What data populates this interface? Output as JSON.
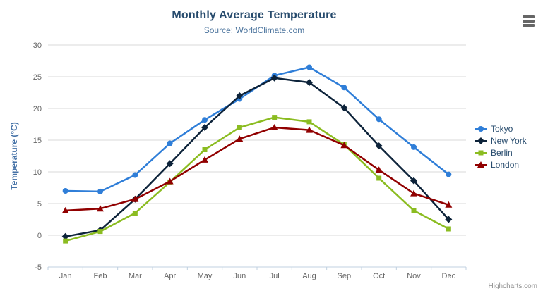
{
  "header": {
    "title": "Monthly Average Temperature",
    "subtitle": "Source: WorldClimate.com",
    "menu_icon": "hamburger-menu-icon"
  },
  "credit": {
    "label": "Highcharts.com"
  },
  "colors": {
    "title": "#274b6d",
    "subtitle": "#4d759e",
    "axis_label": "#666666",
    "axis_title": "#4572a7",
    "grid_line": "#d8d8d8",
    "axis_line": "#c0d0e0",
    "legend_text": "#274b6d",
    "menu_icon": "#666666",
    "credit_text": "#909090"
  },
  "chart_data": {
    "type": "line",
    "title": "Monthly Average Temperature",
    "subtitle": "Source: WorldClimate.com",
    "xlabel": "",
    "ylabel": "Temperature (°C)",
    "ylim": [
      -5,
      30
    ],
    "ytick_step": 5,
    "grid": true,
    "legend_position": "right",
    "categories": [
      "Jan",
      "Feb",
      "Mar",
      "Apr",
      "May",
      "Jun",
      "Jul",
      "Aug",
      "Sep",
      "Oct",
      "Nov",
      "Dec"
    ],
    "series": [
      {
        "name": "Tokyo",
        "color": "#2f7ed8",
        "marker": "circle",
        "values": [
          7.0,
          6.9,
          9.5,
          14.5,
          18.2,
          21.5,
          25.2,
          26.5,
          23.3,
          18.3,
          13.9,
          9.6
        ]
      },
      {
        "name": "New York",
        "color": "#0d233a",
        "marker": "diamond",
        "values": [
          -0.2,
          0.8,
          5.7,
          11.3,
          17.0,
          22.0,
          24.8,
          24.1,
          20.1,
          14.1,
          8.6,
          2.5
        ]
      },
      {
        "name": "Berlin",
        "color": "#8bbc21",
        "marker": "square",
        "values": [
          -0.9,
          0.6,
          3.5,
          8.4,
          13.5,
          17.0,
          18.6,
          17.9,
          14.3,
          9.0,
          3.9,
          1.0
        ]
      },
      {
        "name": "London",
        "color": "#910000",
        "marker": "triangle",
        "values": [
          3.9,
          4.2,
          5.7,
          8.5,
          11.9,
          15.2,
          17.0,
          16.6,
          14.2,
          10.3,
          6.6,
          4.8
        ]
      }
    ]
  }
}
